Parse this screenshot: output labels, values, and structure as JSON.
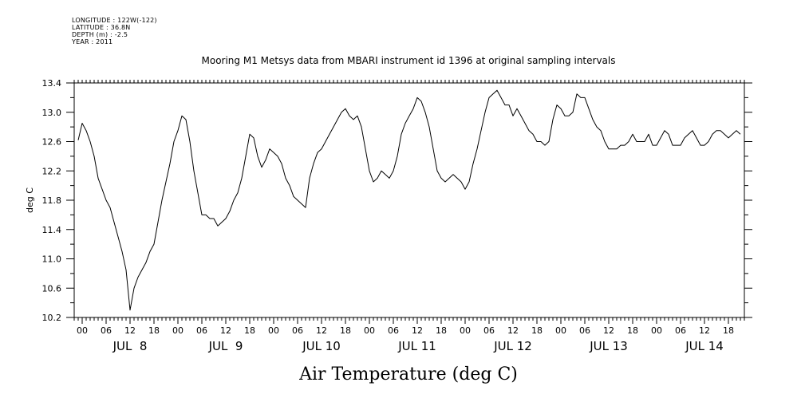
{
  "metadata": {
    "longitude": "LONGITUDE : 122W(-122)",
    "latitude": "LATITUDE : 36.8N",
    "depth": "DEPTH (m) : -2.5",
    "year": "YEAR : 2011"
  },
  "chart_data": {
    "type": "line",
    "title": "Mooring M1 Metsys data from MBARI instrument id 1396 at original sampling intervals",
    "xlabel": "Air Temperature (deg C)",
    "ylabel": "deg C",
    "ylim": [
      10.2,
      13.4
    ],
    "y_ticks": [
      "10.2",
      "10.6",
      "11.0",
      "11.4",
      "11.8",
      "12.2",
      "12.6",
      "13.0",
      "13.4"
    ],
    "x_hour_ticks": [
      "00",
      "06",
      "12",
      "18",
      "00",
      "06",
      "12",
      "18",
      "00",
      "06",
      "12",
      "18",
      "00",
      "06",
      "12",
      "18",
      "00",
      "06",
      "12",
      "18",
      "00",
      "06",
      "12",
      "18",
      "00",
      "06",
      "12",
      "18"
    ],
    "x_day_labels": [
      "JUL  8",
      "JUL  9",
      "JUL 10",
      "JUL 11",
      "JUL 12",
      "JUL 13",
      "JUL 14"
    ],
    "xlim_hours_from_jul8_00": [
      -2,
      166
    ],
    "grid": false,
    "series": [
      {
        "x_hours_from_jul8_00": [
          -1,
          0,
          1,
          2,
          3,
          4,
          5,
          6,
          7,
          8,
          9,
          10,
          11,
          12,
          13,
          14,
          15,
          16,
          17,
          18,
          19,
          20,
          21,
          22,
          23,
          24,
          25,
          26,
          27,
          28,
          29,
          30,
          31,
          32,
          33,
          34,
          35,
          36,
          37,
          38,
          39,
          40,
          41,
          42,
          43,
          44,
          45,
          46,
          47,
          48,
          49,
          50,
          51,
          52,
          53,
          54,
          55,
          56,
          57,
          58,
          59,
          60,
          61,
          62,
          63,
          64,
          65,
          66,
          67,
          68,
          69,
          70,
          71,
          72,
          73,
          74,
          75,
          76,
          77,
          78,
          79,
          80,
          81,
          82,
          83,
          84,
          85,
          86,
          87,
          88,
          89,
          90,
          91,
          92,
          93,
          94,
          95,
          96,
          97,
          98,
          99,
          100,
          101,
          102,
          103,
          104,
          105,
          106,
          107,
          108,
          109,
          110,
          111,
          112,
          113,
          114,
          115,
          116,
          117,
          118,
          119,
          120,
          121,
          122,
          123,
          124,
          125,
          126,
          127,
          128,
          129,
          130,
          131,
          132,
          133,
          134,
          135,
          136,
          137,
          138,
          139,
          140,
          141,
          142,
          143,
          144,
          145,
          146,
          147,
          148,
          149,
          150,
          151,
          152,
          153,
          154,
          155,
          156,
          157,
          158,
          159,
          160,
          161,
          162,
          163,
          164,
          165
        ],
        "values": [
          12.62,
          12.85,
          12.75,
          12.6,
          12.4,
          12.1,
          11.95,
          11.8,
          11.7,
          11.5,
          11.3,
          11.1,
          10.85,
          10.3,
          10.6,
          10.75,
          10.85,
          10.95,
          11.1,
          11.2,
          11.5,
          11.8,
          12.05,
          12.3,
          12.6,
          12.75,
          12.95,
          12.9,
          12.6,
          12.2,
          11.9,
          11.6,
          11.6,
          11.55,
          11.55,
          11.45,
          11.5,
          11.55,
          11.65,
          11.8,
          11.9,
          12.1,
          12.4,
          12.7,
          12.65,
          12.4,
          12.25,
          12.35,
          12.5,
          12.45,
          12.4,
          12.3,
          12.1,
          12.0,
          11.85,
          11.8,
          11.75,
          11.7,
          12.1,
          12.3,
          12.45,
          12.5,
          12.6,
          12.7,
          12.8,
          12.9,
          13.0,
          13.05,
          12.95,
          12.9,
          12.95,
          12.8,
          12.5,
          12.2,
          12.05,
          12.1,
          12.2,
          12.15,
          12.1,
          12.2,
          12.4,
          12.7,
          12.85,
          12.95,
          13.05,
          13.2,
          13.15,
          13.0,
          12.8,
          12.5,
          12.2,
          12.1,
          12.05,
          12.1,
          12.15,
          12.1,
          12.05,
          11.95,
          12.05,
          12.3,
          12.5,
          12.75,
          13.0,
          13.2,
          13.25,
          13.3,
          13.2,
          13.1,
          13.1,
          12.95,
          13.05,
          12.95,
          12.85,
          12.75,
          12.7,
          12.6,
          12.6,
          12.55,
          12.6,
          12.9,
          13.1,
          13.05,
          12.95,
          12.95,
          13.0,
          13.25,
          13.2,
          13.2,
          13.05,
          12.9,
          12.8,
          12.75,
          12.6,
          12.5,
          12.5,
          12.5,
          12.55,
          12.55,
          12.6,
          12.7,
          12.6,
          12.6,
          12.6,
          12.7,
          12.55,
          12.55,
          12.65,
          12.75,
          12.7,
          12.55,
          12.55,
          12.55,
          12.65,
          12.7,
          12.75,
          12.65,
          12.55,
          12.55,
          12.6,
          12.7,
          12.75,
          12.75,
          12.7,
          12.65,
          12.7,
          12.75,
          12.7,
          12.5,
          12.85
        ]
      }
    ]
  }
}
